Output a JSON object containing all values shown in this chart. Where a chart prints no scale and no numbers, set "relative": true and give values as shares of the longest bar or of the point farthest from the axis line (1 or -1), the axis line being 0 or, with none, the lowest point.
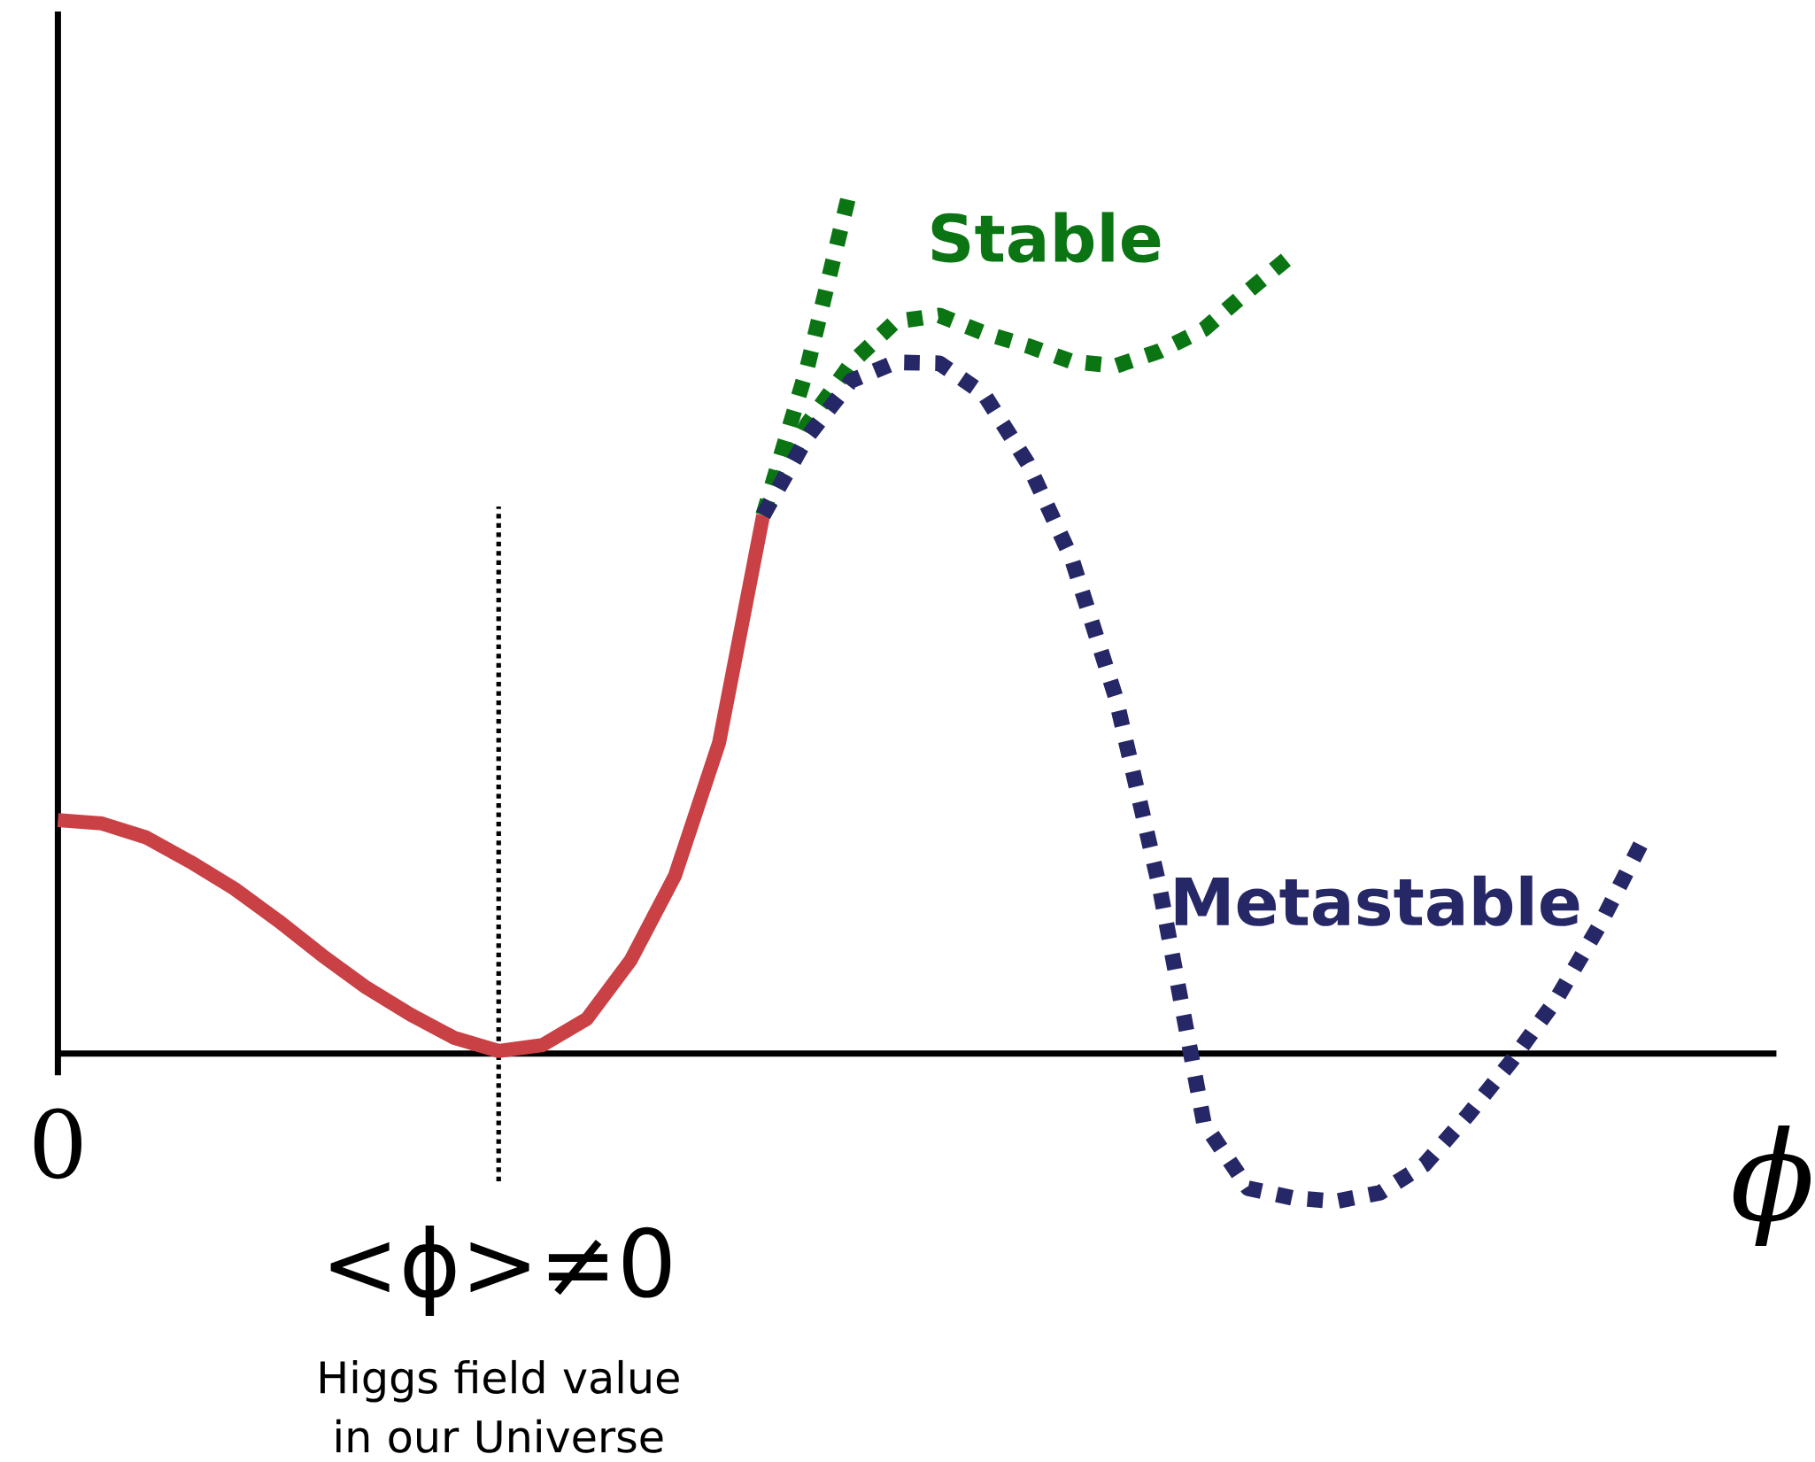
{
  "chart_data": {
    "type": "line",
    "relative": true,
    "xlabel": "ϕ",
    "categories": [
      null,
      null,
      null,
      null,
      null,
      null,
      null,
      null,
      null,
      null,
      null,
      null,
      null,
      null,
      null,
      null,
      null,
      null,
      null,
      null,
      null,
      null,
      null,
      null,
      null,
      null,
      null,
      null,
      null,
      null,
      null,
      null,
      null,
      null,
      null,
      null,
      null
    ],
    "series": [
      {
        "color": "#c94045",
        "line_style": "solid",
        "values": [
          0.269,
          0.265,
          0.249,
          0.221,
          0.19,
          0.153,
          0.113,
          0.076,
          0.045,
          0.018,
          0.003,
          0.01,
          0.04,
          0.108,
          0.205,
          0.358,
          0.62,
          null,
          null,
          null,
          null,
          null,
          null,
          null,
          null,
          null,
          null,
          null,
          null,
          null,
          null,
          null,
          null,
          null,
          null,
          null,
          null
        ]
      },
      {
        "color": "#0a7512",
        "line_style": "dotted",
        "values": [
          null,
          null,
          null,
          null,
          null,
          null,
          null,
          null,
          null,
          null,
          null,
          null,
          null,
          null,
          null,
          null,
          0.62,
          0.79,
          1.0,
          null,
          null,
          null,
          null,
          null,
          null,
          null,
          null,
          null,
          null,
          null,
          null,
          null,
          null,
          null,
          null,
          null,
          null
        ]
      },
      {
        "name": "Stable",
        "color": "#0a7512",
        "line_style": "dotted",
        "values": [
          null,
          null,
          null,
          null,
          null,
          null,
          null,
          null,
          null,
          null,
          null,
          null,
          null,
          null,
          null,
          null,
          0.62,
          0.725,
          0.795,
          0.843,
          0.85,
          0.83,
          0.815,
          0.797,
          0.792,
          0.809,
          0.834,
          0.878,
          0.92,
          null,
          null,
          null,
          null,
          null,
          null,
          null,
          null
        ]
      },
      {
        "name": "Metastable",
        "color": "#262766",
        "line_style": "dotted",
        "values": [
          null,
          null,
          null,
          null,
          null,
          null,
          null,
          null,
          null,
          null,
          null,
          null,
          null,
          null,
          null,
          null,
          0.62,
          0.71,
          0.775,
          0.796,
          0.795,
          0.76,
          0.68,
          0.57,
          0.41,
          0.19,
          -0.08,
          -0.155,
          -0.166,
          -0.17,
          -0.16,
          -0.128,
          -0.07,
          -0.007,
          0.063,
          0.15,
          0.25
        ]
      }
    ],
    "annotations": [
      "0",
      "<ϕ>≠0",
      "Higgs field value in our Universe"
    ]
  }
}
